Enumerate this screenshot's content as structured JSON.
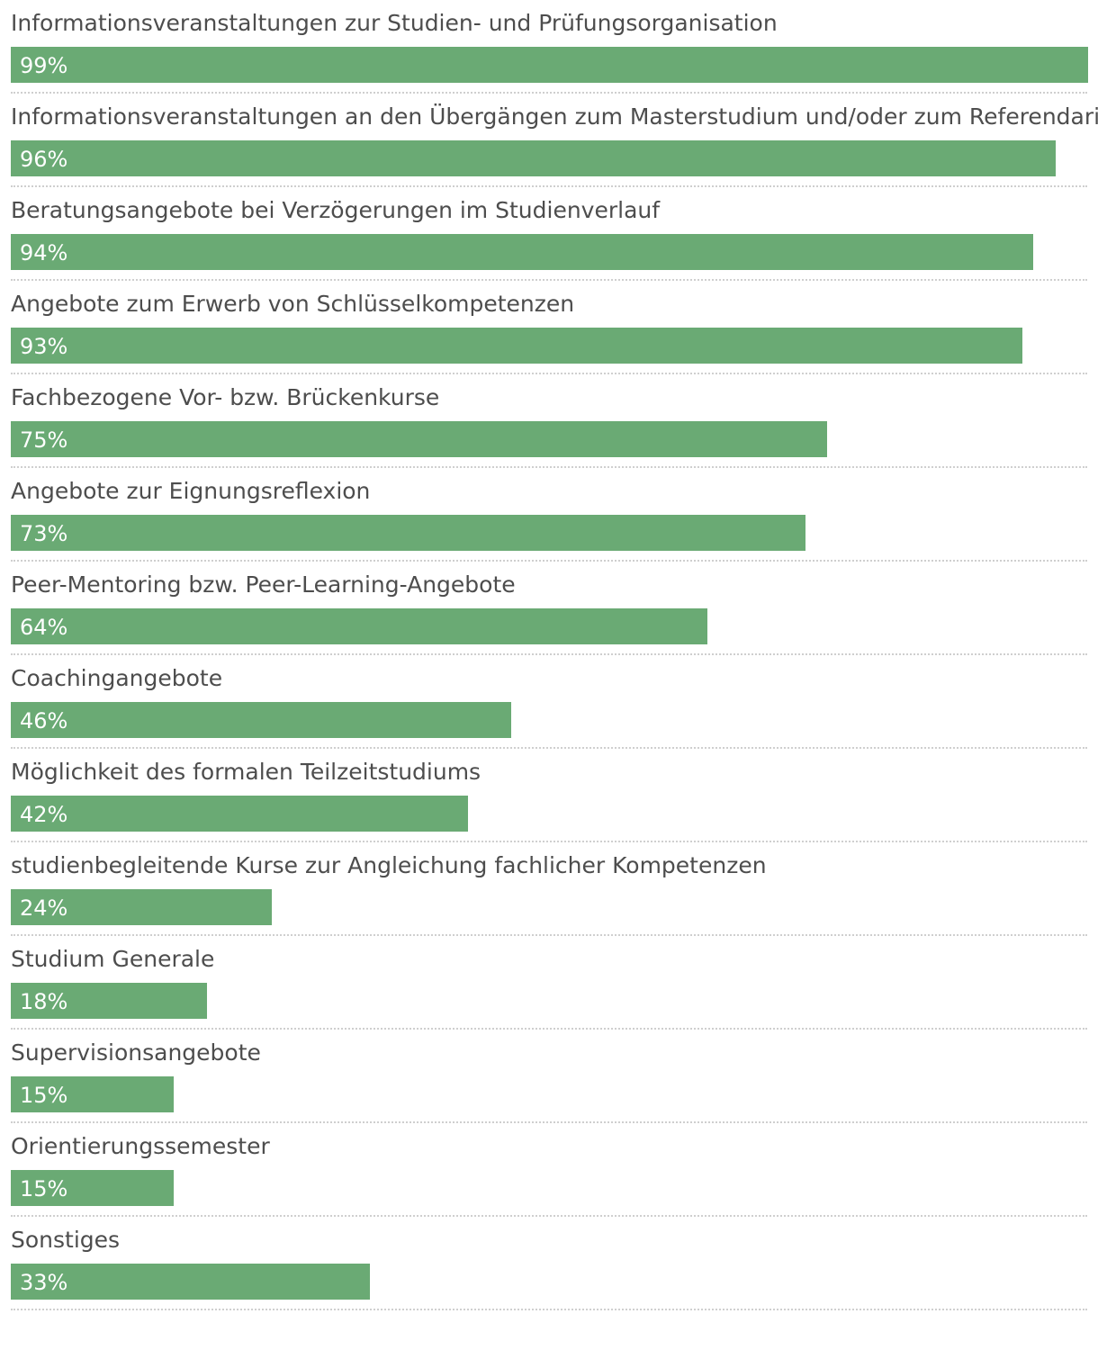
{
  "chart_data": {
    "type": "bar",
    "orientation": "horizontal",
    "categories": [
      "Informationsveranstaltungen zur Studien- und Prüfungsorganisation",
      "Informationsveranstaltungen an den Übergängen zum Masterstudium und/oder zum Referendariat",
      "Beratungsangebote bei Verzögerungen im Studienverlauf",
      "Angebote zum Erwerb von Schlüsselkompetenzen",
      "Fachbezogene Vor- bzw. Brückenkurse",
      "Angebote zur Eignungsreflexion",
      "Peer-Mentoring bzw. Peer-Learning-Angebote",
      "Coachingangebote",
      "Möglichkeit des formalen Teilzeitstudiums",
      "studienbegleitende Kurse zur Angleichung fachlicher Kompetenzen",
      "Studium Generale",
      "Supervisionsangebote",
      "Orientierungssemester",
      "Sonstiges"
    ],
    "values": [
      99,
      96,
      94,
      93,
      75,
      73,
      64,
      46,
      42,
      24,
      18,
      15,
      15,
      33
    ],
    "value_labels": [
      "99%",
      "96%",
      "94%",
      "93%",
      "75%",
      "73%",
      "64%",
      "46%",
      "42%",
      "24%",
      "18%",
      "15%",
      "15%",
      "33%"
    ],
    "unit": "%",
    "xlim": [
      0,
      100
    ],
    "bar_color": "#6aaa74",
    "label_color": "#4d4d4d",
    "value_label_color": "#ffffff",
    "divider_style": "dotted",
    "grid": false,
    "legend": false
  }
}
